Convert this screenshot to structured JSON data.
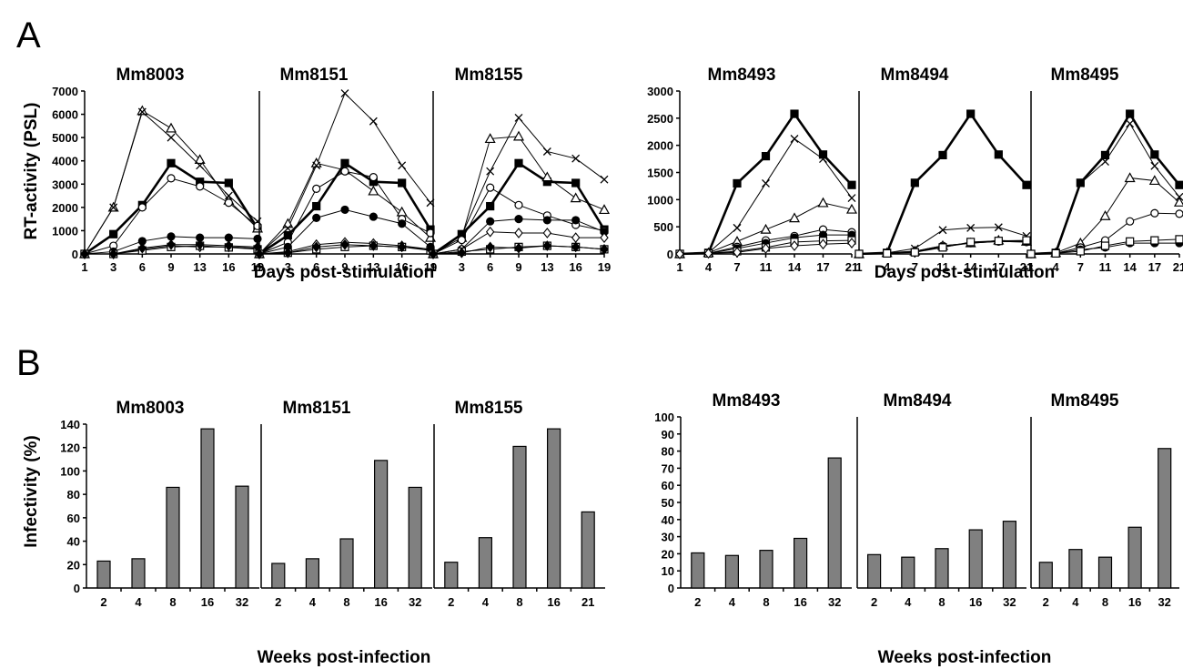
{
  "panels": [
    {
      "label": "A"
    },
    {
      "label": "B"
    }
  ],
  "shared_labels": [
    {
      "text": "Days post-stimulation"
    },
    {
      "text": "Days post-stimulation"
    },
    {
      "text": "Weeks post-infection"
    },
    {
      "text": "Weeks post-infection"
    }
  ],
  "y_labels": [
    {
      "text": "RT-activity (PSL)"
    },
    {
      "text": "Infectivity (%)"
    }
  ],
  "chart_data": [
    {
      "type": "line",
      "title": "Mm8003",
      "x": [
        "1",
        "3",
        "6",
        "9",
        "13",
        "16",
        "19"
      ],
      "ylim": [
        0,
        7000
      ],
      "yticks": [
        0,
        1000,
        2000,
        3000,
        4000,
        5000,
        6000,
        7000
      ],
      "series": [
        {
          "marker": "filled-square",
          "values": [
            0,
            850,
            2100,
            3900,
            3100,
            3050,
            1100
          ]
        },
        {
          "marker": "open-triangle",
          "values": [
            0,
            2000,
            6150,
            5400,
            4050,
            2300,
            1100
          ]
        },
        {
          "marker": "cross",
          "values": [
            0,
            2000,
            6100,
            5000,
            3800,
            2500,
            1400
          ]
        },
        {
          "marker": "open-circle",
          "values": [
            0,
            350,
            2000,
            3250,
            2900,
            2200,
            1200
          ]
        },
        {
          "marker": "filled-circle",
          "values": [
            0,
            100,
            550,
            750,
            700,
            700,
            650
          ]
        },
        {
          "marker": "open-diamond",
          "values": [
            0,
            0,
            200,
            350,
            300,
            300,
            250
          ]
        },
        {
          "marker": "open-square",
          "values": [
            0,
            0,
            150,
            300,
            350,
            280,
            200
          ]
        },
        {
          "marker": "filled-diamond",
          "values": [
            0,
            0,
            250,
            400,
            400,
            350,
            300
          ]
        }
      ]
    },
    {
      "type": "line",
      "title": "Mm8151",
      "x": [
        "1",
        "3",
        "6",
        "9",
        "13",
        "16",
        "19"
      ],
      "ylim": [
        0,
        7000
      ],
      "yticks": [],
      "series": [
        {
          "marker": "filled-square",
          "values": [
            0,
            800,
            2050,
            3900,
            3100,
            3050,
            1050
          ]
        },
        {
          "marker": "open-triangle",
          "values": [
            0,
            1300,
            3900,
            3600,
            2700,
            1800,
            700
          ]
        },
        {
          "marker": "cross",
          "values": [
            0,
            1100,
            3800,
            6900,
            5700,
            3800,
            2200
          ]
        },
        {
          "marker": "open-circle",
          "values": [
            0,
            500,
            2800,
            3550,
            3300,
            1500,
            900
          ]
        },
        {
          "marker": "filled-circle",
          "values": [
            0,
            300,
            1550,
            1900,
            1600,
            1300,
            300
          ]
        },
        {
          "marker": "open-diamond",
          "values": [
            0,
            100,
            400,
            500,
            450,
            350,
            200
          ]
        },
        {
          "marker": "open-square",
          "values": [
            0,
            50,
            200,
            300,
            350,
            300,
            150
          ]
        },
        {
          "marker": "filled-diamond",
          "values": [
            0,
            50,
            300,
            400,
            350,
            300,
            200
          ]
        }
      ]
    },
    {
      "type": "line",
      "title": "Mm8155",
      "x": [
        "1",
        "3",
        "6",
        "9",
        "13",
        "16",
        "19"
      ],
      "ylim": [
        0,
        7000
      ],
      "yticks": [],
      "series": [
        {
          "marker": "filled-square",
          "values": [
            0,
            850,
            2050,
            3900,
            3100,
            3050,
            1050
          ]
        },
        {
          "marker": "open-triangle",
          "values": [
            0,
            700,
            4950,
            5050,
            3300,
            2400,
            1900
          ]
        },
        {
          "marker": "cross",
          "values": [
            0,
            800,
            3550,
            5850,
            4400,
            4100,
            3200
          ]
        },
        {
          "marker": "open-circle",
          "values": [
            0,
            600,
            2850,
            2100,
            1650,
            1250,
            1000
          ]
        },
        {
          "marker": "filled-circle",
          "values": [
            0,
            200,
            1400,
            1500,
            1450,
            1450,
            950
          ]
        },
        {
          "marker": "open-diamond",
          "values": [
            0,
            200,
            950,
            900,
            900,
            700,
            700
          ]
        },
        {
          "marker": "open-square",
          "values": [
            0,
            100,
            200,
            300,
            350,
            300,
            200
          ]
        },
        {
          "marker": "filled-diamond",
          "values": [
            0,
            50,
            300,
            250,
            350,
            300,
            200
          ]
        }
      ]
    },
    {
      "type": "line",
      "title": "Mm8493",
      "x": [
        "1",
        "4",
        "7",
        "11",
        "14",
        "17",
        "21"
      ],
      "ylim": [
        0,
        3000
      ],
      "yticks": [
        0,
        500,
        1000,
        1500,
        2000,
        2500,
        3000
      ],
      "series": [
        {
          "marker": "filled-square",
          "values": [
            0,
            20,
            1300,
            1800,
            2580,
            1830,
            1270
          ]
        },
        {
          "marker": "cross",
          "values": [
            0,
            20,
            480,
            1300,
            2120,
            1750,
            1030
          ]
        },
        {
          "marker": "open-triangle",
          "values": [
            0,
            20,
            230,
            450,
            660,
            940,
            820
          ]
        },
        {
          "marker": "open-circle",
          "values": [
            0,
            10,
            130,
            250,
            330,
            450,
            400
          ]
        },
        {
          "marker": "filled-circle",
          "values": [
            0,
            10,
            100,
            200,
            300,
            350,
            350
          ]
        },
        {
          "marker": "open-square",
          "values": [
            0,
            10,
            50,
            120,
            220,
            240,
            250
          ]
        },
        {
          "marker": "open-diamond",
          "values": [
            0,
            10,
            30,
            100,
            150,
            180,
            200
          ]
        }
      ]
    },
    {
      "type": "line",
      "title": "Mm8494",
      "x": [
        "1",
        "4",
        "7",
        "11",
        "14",
        "17",
        "21"
      ],
      "ylim": [
        0,
        3000
      ],
      "yticks": [],
      "series": [
        {
          "marker": "filled-square",
          "values": [
            0,
            20,
            1310,
            1820,
            2580,
            1830,
            1270
          ]
        },
        {
          "marker": "cross",
          "values": [
            0,
            20,
            100,
            440,
            480,
            490,
            330
          ]
        },
        {
          "marker": "open-triangle",
          "values": [
            0,
            20,
            50,
            150,
            200,
            250,
            230
          ]
        },
        {
          "marker": "open-circle",
          "values": [
            0,
            10,
            50,
            150,
            200,
            230,
            220
          ]
        },
        {
          "marker": "filled-circle",
          "values": [
            0,
            10,
            40,
            130,
            200,
            230,
            220
          ]
        },
        {
          "marker": "open-square",
          "values": [
            0,
            10,
            30,
            120,
            220,
            240,
            250
          ]
        }
      ]
    },
    {
      "type": "line",
      "title": "Mm8495",
      "x": [
        "1",
        "4",
        "7",
        "11",
        "14",
        "17",
        "21"
      ],
      "ylim": [
        0,
        3000
      ],
      "yticks": [],
      "series": [
        {
          "marker": "filled-square",
          "values": [
            0,
            20,
            1310,
            1820,
            2580,
            1830,
            1270
          ]
        },
        {
          "marker": "cross",
          "values": [
            0,
            20,
            1300,
            1700,
            2400,
            1620,
            1050
          ]
        },
        {
          "marker": "open-triangle",
          "values": [
            0,
            20,
            200,
            700,
            1400,
            1350,
            950
          ]
        },
        {
          "marker": "open-circle",
          "values": [
            0,
            10,
            120,
            250,
            600,
            750,
            740
          ]
        },
        {
          "marker": "filled-circle",
          "values": [
            0,
            10,
            80,
            120,
            200,
            200,
            200
          ]
        },
        {
          "marker": "open-square",
          "values": [
            0,
            10,
            50,
            150,
            230,
            250,
            270
          ]
        }
      ]
    },
    {
      "type": "bar",
      "title": "Mm8003",
      "categories": [
        "2",
        "4",
        "8",
        "16",
        "32"
      ],
      "values": [
        23,
        25,
        86,
        136,
        87
      ],
      "ylim": [
        0,
        140
      ],
      "yticks": [
        0,
        20,
        40,
        60,
        80,
        100,
        120,
        140
      ]
    },
    {
      "type": "bar",
      "title": "Mm8151",
      "categories": [
        "2",
        "4",
        "8",
        "16",
        "32"
      ],
      "values": [
        21,
        25,
        42,
        109,
        86
      ],
      "ylim": [
        0,
        140
      ],
      "yticks": []
    },
    {
      "type": "bar",
      "title": "Mm8155",
      "categories": [
        "2",
        "4",
        "8",
        "16",
        "21"
      ],
      "values": [
        22,
        43,
        121,
        136,
        65
      ],
      "ylim": [
        0,
        140
      ],
      "yticks": []
    },
    {
      "type": "bar",
      "title": "Mm8493",
      "categories": [
        "2",
        "4",
        "8",
        "16",
        "32"
      ],
      "values": [
        20.5,
        19,
        22,
        29,
        76
      ],
      "ylim": [
        0,
        100
      ],
      "yticks": [
        0,
        10,
        20,
        30,
        40,
        50,
        60,
        70,
        80,
        90,
        100
      ]
    },
    {
      "type": "bar",
      "title": "Mm8494",
      "categories": [
        "2",
        "4",
        "8",
        "16",
        "32"
      ],
      "values": [
        19.5,
        18,
        23,
        34,
        39
      ],
      "ylim": [
        0,
        100
      ],
      "yticks": []
    },
    {
      "type": "bar",
      "title": "Mm8495",
      "categories": [
        "2",
        "4",
        "8",
        "16",
        "32"
      ],
      "values": [
        15,
        22.5,
        18,
        35.5,
        81.5
      ],
      "ylim": [
        0,
        100
      ],
      "yticks": []
    }
  ]
}
